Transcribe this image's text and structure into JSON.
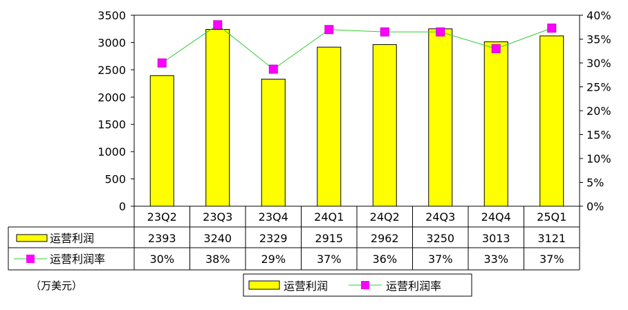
{
  "chart_data": {
    "type": "bar",
    "categories": [
      "23Q2",
      "23Q3",
      "23Q4",
      "24Q1",
      "24Q2",
      "24Q3",
      "24Q4",
      "25Q1"
    ],
    "series": [
      {
        "name": "运营利润",
        "type": "bar",
        "axis": "left",
        "color": "#ffff00",
        "values": [
          2393,
          3240,
          2329,
          2915,
          2962,
          3250,
          3013,
          3121
        ],
        "labels": [
          "2393",
          "3240",
          "2329",
          "2915",
          "2962",
          "3250",
          "3013",
          "3121"
        ]
      },
      {
        "name": "运营利润率",
        "type": "line",
        "axis": "right",
        "color": "#33cc33",
        "marker_color": "#ff00ff",
        "values": [
          30.0,
          38.0,
          28.7,
          37.0,
          36.5,
          36.5,
          33.0,
          37.3
        ],
        "labels": [
          "30%",
          "38%",
          "29%",
          "37%",
          "36%",
          "37%",
          "33%",
          "37%"
        ]
      }
    ],
    "y_left": {
      "min": 0,
      "max": 3500,
      "ticks": [
        "0",
        "500",
        "1000",
        "1500",
        "2000",
        "2500",
        "3000",
        "3500"
      ]
    },
    "y_right": {
      "min": 0,
      "max": 40,
      "ticks": [
        "0%",
        "5%",
        "10%",
        "15%",
        "20%",
        "25%",
        "30%",
        "35%",
        "40%"
      ]
    },
    "unit_note": "（万美元）",
    "legend_position": "bottom",
    "data_table": true,
    "grid": false
  }
}
